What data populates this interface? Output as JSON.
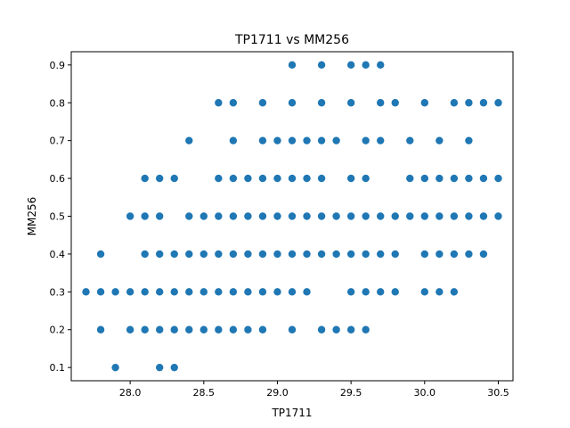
{
  "chart_data": {
    "type": "scatter",
    "title": "TP1711 vs MM256",
    "xlabel": "TP1711",
    "ylabel": "MM256",
    "xlim": [
      27.6,
      30.6
    ],
    "ylim": [
      0.065,
      0.935
    ],
    "xticks": [
      28.0,
      28.5,
      29.0,
      29.5,
      30.0,
      30.5
    ],
    "xtick_labels": [
      "28.0",
      "28.5",
      "29.0",
      "29.5",
      "30.0",
      "30.5"
    ],
    "yticks": [
      0.1,
      0.2,
      0.3,
      0.4,
      0.5,
      0.6,
      0.7,
      0.8,
      0.9
    ],
    "ytick_labels": [
      "0.1",
      "0.2",
      "0.3",
      "0.4",
      "0.5",
      "0.6",
      "0.7",
      "0.8",
      "0.9"
    ],
    "grid": false,
    "color": "#1f77b4",
    "points": [
      [
        29.1,
        0.9
      ],
      [
        29.3,
        0.9
      ],
      [
        29.5,
        0.9
      ],
      [
        29.6,
        0.9
      ],
      [
        29.7,
        0.9
      ],
      [
        28.6,
        0.8
      ],
      [
        28.7,
        0.8
      ],
      [
        28.9,
        0.8
      ],
      [
        29.1,
        0.8
      ],
      [
        29.3,
        0.8
      ],
      [
        29.5,
        0.8
      ],
      [
        29.7,
        0.8
      ],
      [
        29.8,
        0.8
      ],
      [
        30.0,
        0.8
      ],
      [
        30.2,
        0.8
      ],
      [
        30.3,
        0.8
      ],
      [
        30.4,
        0.8
      ],
      [
        30.5,
        0.8
      ],
      [
        28.4,
        0.7
      ],
      [
        28.7,
        0.7
      ],
      [
        28.9,
        0.7
      ],
      [
        29.0,
        0.7
      ],
      [
        29.1,
        0.7
      ],
      [
        29.2,
        0.7
      ],
      [
        29.3,
        0.7
      ],
      [
        29.4,
        0.7
      ],
      [
        29.6,
        0.7
      ],
      [
        29.7,
        0.7
      ],
      [
        29.9,
        0.7
      ],
      [
        30.1,
        0.7
      ],
      [
        30.3,
        0.7
      ],
      [
        28.1,
        0.6
      ],
      [
        28.2,
        0.6
      ],
      [
        28.3,
        0.6
      ],
      [
        28.6,
        0.6
      ],
      [
        28.7,
        0.6
      ],
      [
        28.8,
        0.6
      ],
      [
        28.9,
        0.6
      ],
      [
        29.0,
        0.6
      ],
      [
        29.1,
        0.6
      ],
      [
        29.2,
        0.6
      ],
      [
        29.3,
        0.6
      ],
      [
        29.5,
        0.6
      ],
      [
        29.6,
        0.6
      ],
      [
        29.9,
        0.6
      ],
      [
        30.0,
        0.6
      ],
      [
        30.1,
        0.6
      ],
      [
        30.2,
        0.6
      ],
      [
        30.3,
        0.6
      ],
      [
        30.4,
        0.6
      ],
      [
        30.5,
        0.6
      ],
      [
        28.0,
        0.5
      ],
      [
        28.1,
        0.5
      ],
      [
        28.2,
        0.5
      ],
      [
        28.4,
        0.5
      ],
      [
        28.5,
        0.5
      ],
      [
        28.6,
        0.5
      ],
      [
        28.7,
        0.5
      ],
      [
        28.8,
        0.5
      ],
      [
        28.9,
        0.5
      ],
      [
        29.0,
        0.5
      ],
      [
        29.1,
        0.5
      ],
      [
        29.2,
        0.5
      ],
      [
        29.3,
        0.5
      ],
      [
        29.4,
        0.5
      ],
      [
        29.5,
        0.5
      ],
      [
        29.6,
        0.5
      ],
      [
        29.7,
        0.5
      ],
      [
        29.8,
        0.5
      ],
      [
        29.9,
        0.5
      ],
      [
        30.0,
        0.5
      ],
      [
        30.1,
        0.5
      ],
      [
        30.2,
        0.5
      ],
      [
        30.3,
        0.5
      ],
      [
        30.4,
        0.5
      ],
      [
        30.5,
        0.5
      ],
      [
        27.8,
        0.4
      ],
      [
        28.1,
        0.4
      ],
      [
        28.2,
        0.4
      ],
      [
        28.3,
        0.4
      ],
      [
        28.4,
        0.4
      ],
      [
        28.5,
        0.4
      ],
      [
        28.6,
        0.4
      ],
      [
        28.7,
        0.4
      ],
      [
        28.8,
        0.4
      ],
      [
        28.9,
        0.4
      ],
      [
        29.0,
        0.4
      ],
      [
        29.1,
        0.4
      ],
      [
        29.2,
        0.4
      ],
      [
        29.3,
        0.4
      ],
      [
        29.4,
        0.4
      ],
      [
        29.5,
        0.4
      ],
      [
        29.6,
        0.4
      ],
      [
        29.7,
        0.4
      ],
      [
        29.8,
        0.4
      ],
      [
        30.0,
        0.4
      ],
      [
        30.1,
        0.4
      ],
      [
        30.2,
        0.4
      ],
      [
        30.3,
        0.4
      ],
      [
        30.4,
        0.4
      ],
      [
        27.7,
        0.3
      ],
      [
        27.8,
        0.3
      ],
      [
        27.9,
        0.3
      ],
      [
        28.0,
        0.3
      ],
      [
        28.1,
        0.3
      ],
      [
        28.2,
        0.3
      ],
      [
        28.3,
        0.3
      ],
      [
        28.4,
        0.3
      ],
      [
        28.5,
        0.3
      ],
      [
        28.6,
        0.3
      ],
      [
        28.7,
        0.3
      ],
      [
        28.8,
        0.3
      ],
      [
        28.9,
        0.3
      ],
      [
        29.0,
        0.3
      ],
      [
        29.1,
        0.3
      ],
      [
        29.2,
        0.3
      ],
      [
        29.5,
        0.3
      ],
      [
        29.6,
        0.3
      ],
      [
        29.7,
        0.3
      ],
      [
        29.8,
        0.3
      ],
      [
        30.0,
        0.3
      ],
      [
        30.1,
        0.3
      ],
      [
        30.2,
        0.3
      ],
      [
        27.8,
        0.2
      ],
      [
        28.0,
        0.2
      ],
      [
        28.1,
        0.2
      ],
      [
        28.2,
        0.2
      ],
      [
        28.3,
        0.2
      ],
      [
        28.4,
        0.2
      ],
      [
        28.5,
        0.2
      ],
      [
        28.6,
        0.2
      ],
      [
        28.7,
        0.2
      ],
      [
        28.8,
        0.2
      ],
      [
        28.9,
        0.2
      ],
      [
        29.1,
        0.2
      ],
      [
        29.3,
        0.2
      ],
      [
        29.4,
        0.2
      ],
      [
        29.5,
        0.2
      ],
      [
        29.6,
        0.2
      ],
      [
        27.9,
        0.1
      ],
      [
        28.2,
        0.1
      ],
      [
        28.3,
        0.1
      ]
    ]
  }
}
